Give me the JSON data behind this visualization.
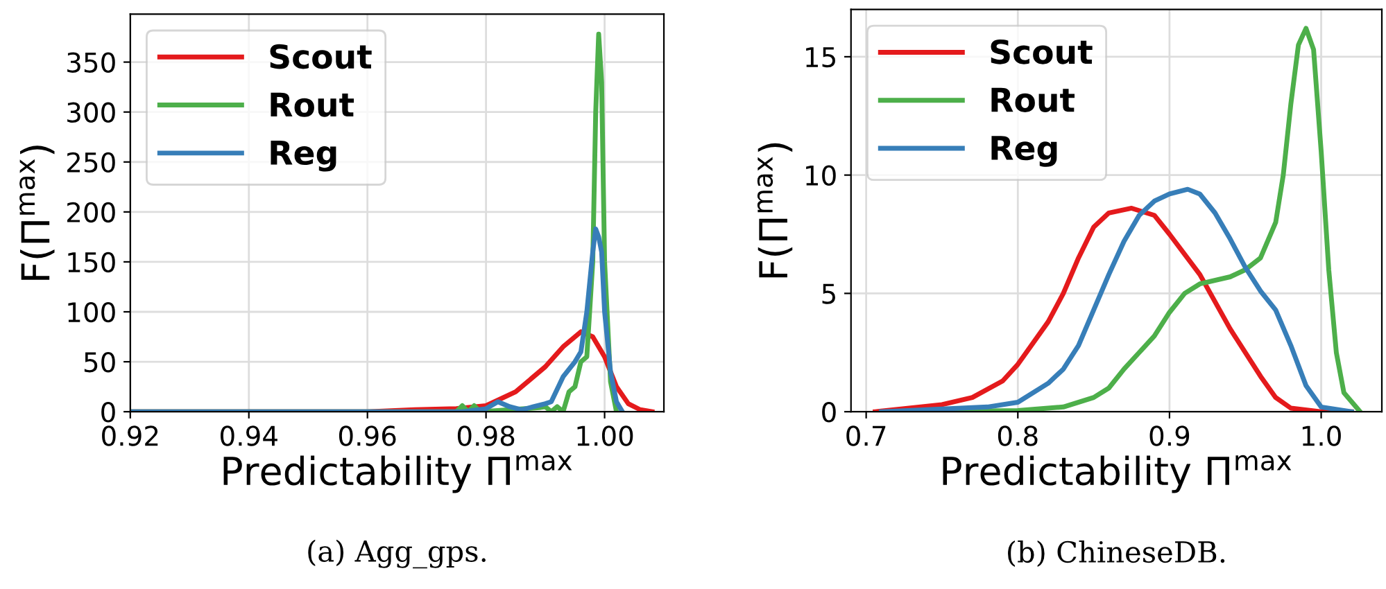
{
  "chart_data": [
    {
      "type": "line",
      "xlabel": "Predictability Π$^{max}$",
      "ylabel": "F(Π$^{max}$)",
      "xlim": [
        0.92,
        1.01
      ],
      "xticks": [
        {
          "value": 0.92,
          "label": "0.92"
        },
        {
          "value": 0.94,
          "label": "0.94"
        },
        {
          "value": 0.96,
          "label": "0.96"
        },
        {
          "value": 0.98,
          "label": "0.98"
        },
        {
          "value": 1.0,
          "label": "1.00"
        }
      ],
      "ylim": [
        0,
        398
      ],
      "yticks": [
        0,
        50,
        100,
        150,
        200,
        250,
        300,
        350
      ],
      "grid": true,
      "legend": "top left",
      "annotations": [
        "(a) Agg_gps."
      ],
      "series": [
        {
          "name": "Scout",
          "color": "#e41a1c",
          "x": [
            0.92,
            0.96,
            0.968,
            0.975,
            0.98,
            0.985,
            0.99,
            0.993,
            0.996,
            0.998,
            1.0,
            1.002,
            1.004,
            1.006,
            1.008
          ],
          "values": [
            0,
            0,
            2,
            3,
            6,
            20,
            45,
            65,
            80,
            75,
            55,
            25,
            8,
            2,
            0
          ]
        },
        {
          "name": "Rout",
          "color": "#4daf4a",
          "x": [
            0.92,
            0.975,
            0.976,
            0.977,
            0.978,
            0.979,
            0.989,
            0.99,
            0.991,
            0.992,
            0.993,
            0.994,
            0.995,
            0.996,
            0.997,
            0.998,
            0.9985,
            0.999,
            0.9995,
            1.0,
            1.001,
            1.002
          ],
          "values": [
            0,
            0,
            6,
            0,
            6,
            0,
            4,
            5,
            0,
            5,
            0,
            20,
            25,
            50,
            55,
            150,
            300,
            378,
            330,
            150,
            30,
            0
          ]
        },
        {
          "name": "Reg",
          "color": "#377eb8",
          "x": [
            0.92,
            0.976,
            0.98,
            0.982,
            0.984,
            0.986,
            0.988,
            0.99,
            0.991,
            0.993,
            0.995,
            0.996,
            0.997,
            0.998,
            0.9985,
            0.999,
            0.9995,
            1.0,
            1.001,
            1.002,
            1.003
          ],
          "values": [
            0,
            0,
            3,
            10,
            5,
            2,
            5,
            8,
            10,
            35,
            50,
            60,
            100,
            160,
            183,
            175,
            160,
            100,
            40,
            10,
            0
          ]
        }
      ]
    },
    {
      "type": "line",
      "xlabel": "Predictability Π$^{max}$",
      "ylabel": "F(Π$^{max}$)",
      "xlim": [
        0.69,
        1.04
      ],
      "xticks": [
        0.7,
        0.8,
        0.9,
        {
          "value": 1.0,
          "label": "1.0"
        }
      ],
      "ylim": [
        0,
        17
      ],
      "yticks": [
        0,
        5,
        10,
        15
      ],
      "grid": true,
      "legend": "top left",
      "annotations": [
        "(b) ChineseDB."
      ],
      "series": [
        {
          "name": "Scout",
          "color": "#e41a1c",
          "x": [
            0.706,
            0.75,
            0.77,
            0.79,
            0.8,
            0.82,
            0.83,
            0.84,
            0.85,
            0.86,
            0.875,
            0.89,
            0.9,
            0.92,
            0.94,
            0.96,
            0.97,
            0.98,
            1.0,
            1.02
          ],
          "values": [
            0,
            0.3,
            0.6,
            1.3,
            2,
            3.8,
            5,
            6.5,
            7.8,
            8.4,
            8.6,
            8.3,
            7.5,
            5.8,
            3.5,
            1.5,
            0.6,
            0.15,
            0,
            0
          ]
        },
        {
          "name": "Rout",
          "color": "#4daf4a",
          "x": [
            0.73,
            0.8,
            0.83,
            0.85,
            0.86,
            0.87,
            0.88,
            0.89,
            0.9,
            0.91,
            0.92,
            0.94,
            0.95,
            0.96,
            0.97,
            0.975,
            0.98,
            0.985,
            0.99,
            0.995,
            1.0,
            1.005,
            1.01,
            1.015,
            1.025
          ],
          "values": [
            0,
            0.05,
            0.2,
            0.6,
            1.0,
            1.8,
            2.5,
            3.2,
            4.2,
            5.0,
            5.4,
            5.7,
            6.0,
            6.5,
            8.0,
            10,
            13,
            15.5,
            16.2,
            15.3,
            11,
            6,
            2.5,
            0.8,
            0.05
          ]
        },
        {
          "name": "Reg",
          "color": "#377eb8",
          "x": [
            0.71,
            0.78,
            0.8,
            0.82,
            0.83,
            0.84,
            0.85,
            0.86,
            0.87,
            0.88,
            0.89,
            0.9,
            0.912,
            0.92,
            0.93,
            0.94,
            0.95,
            0.96,
            0.97,
            0.98,
            0.99,
            1.0,
            1.02
          ],
          "values": [
            0,
            0.2,
            0.4,
            1.2,
            1.8,
            2.8,
            4.3,
            5.8,
            7.2,
            8.3,
            8.9,
            9.2,
            9.4,
            9.2,
            8.4,
            7.3,
            6.1,
            5.1,
            4.3,
            2.8,
            1.1,
            0.2,
            0
          ]
        }
      ]
    }
  ]
}
